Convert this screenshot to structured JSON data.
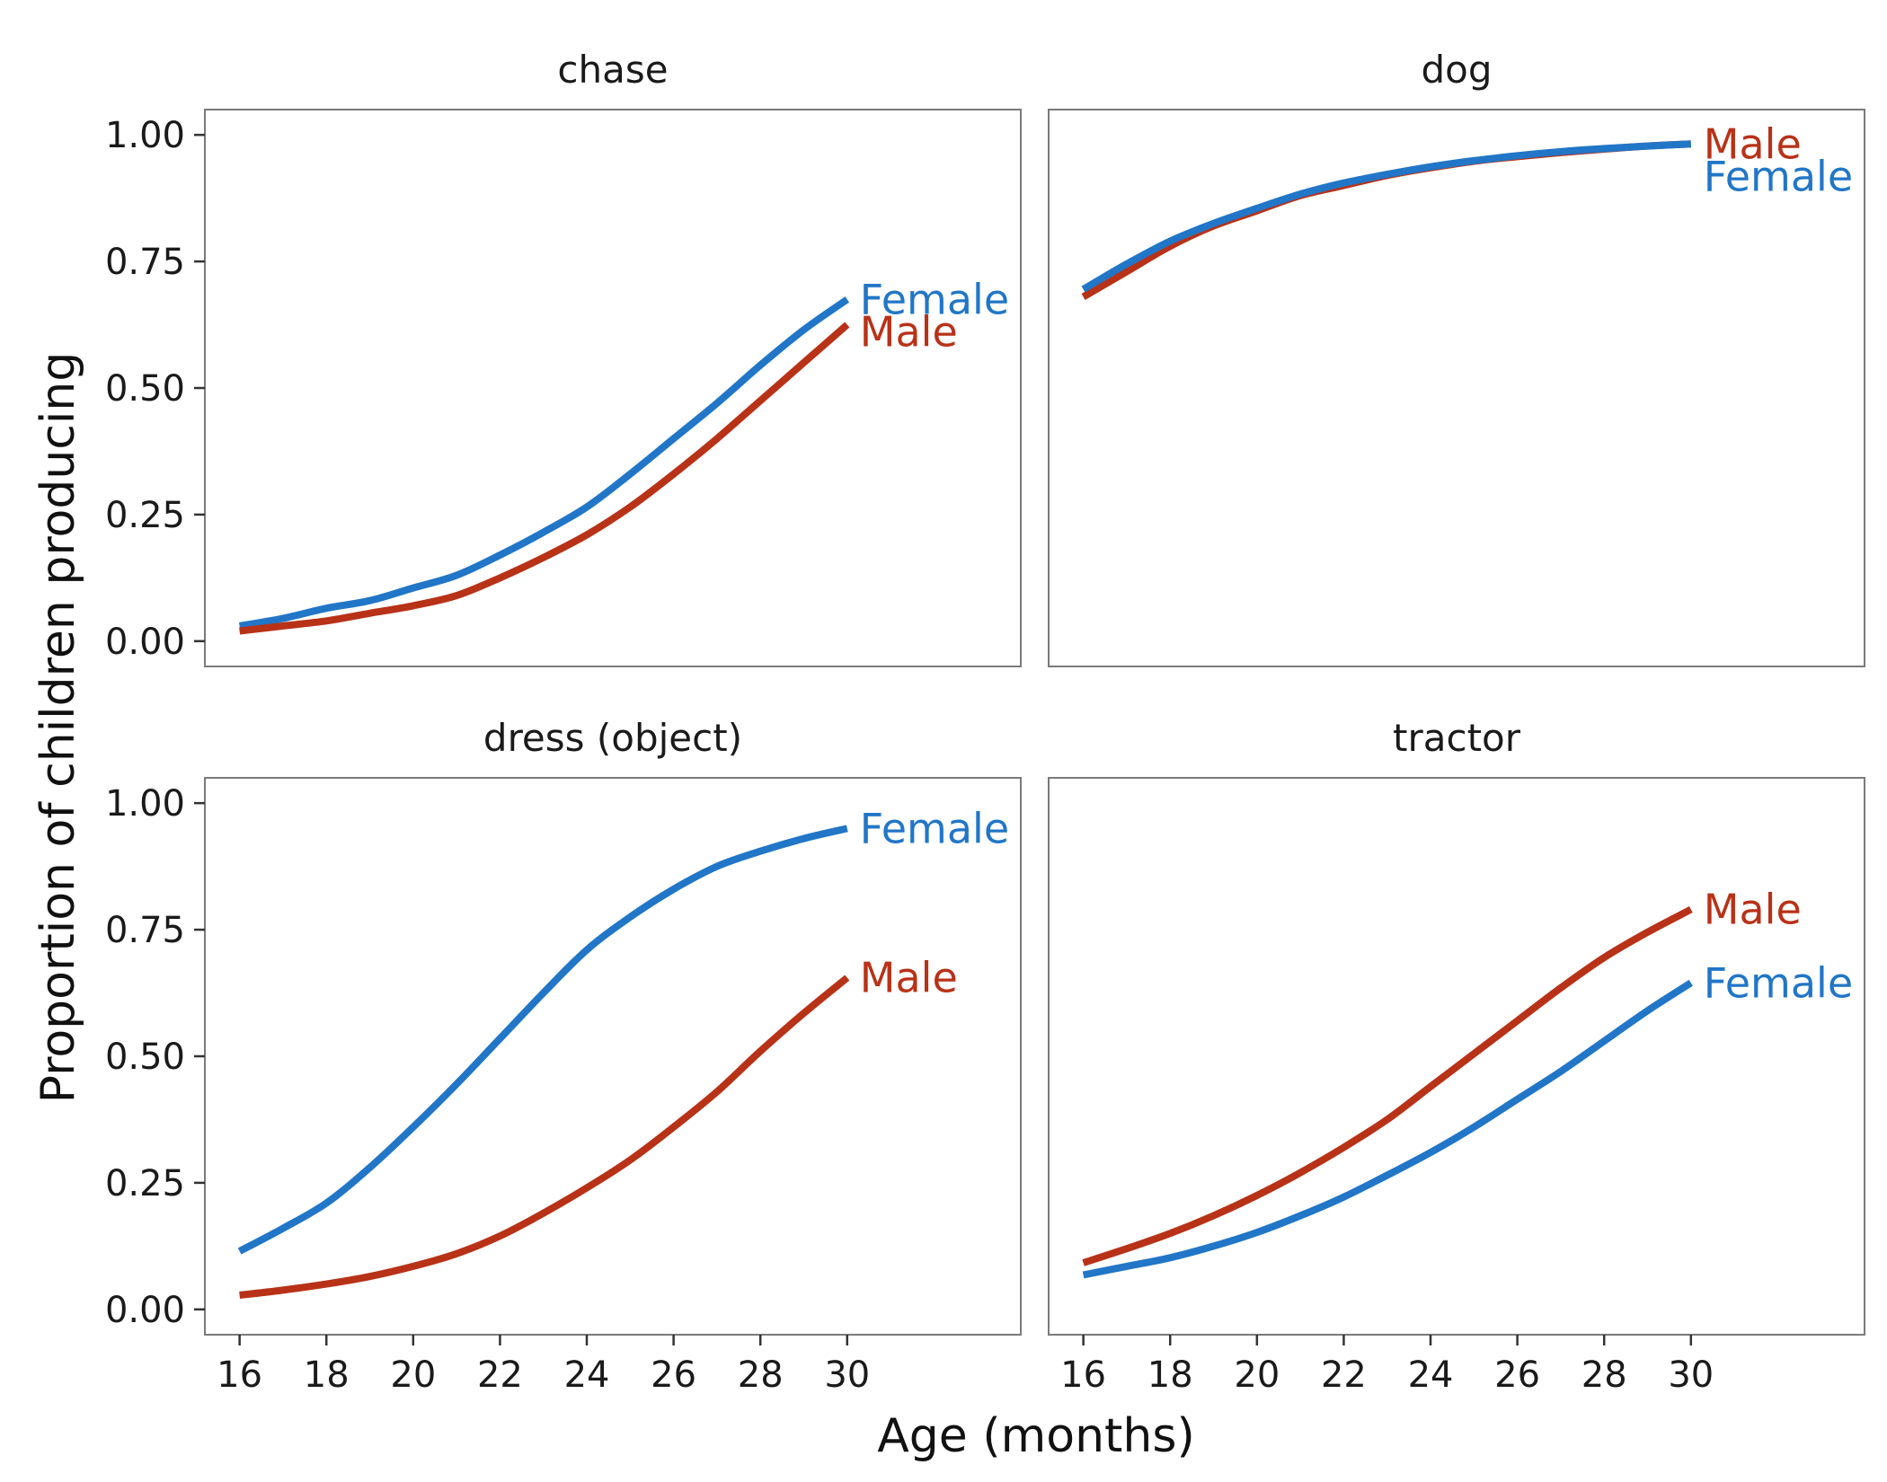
{
  "chart_data": {
    "type": "line",
    "xlabel": "Age (months)",
    "ylabel": "Proportion of children producing",
    "xlim": [
      15.2,
      34
    ],
    "ylim": [
      -0.05,
      1.05
    ],
    "x_ticks": [
      16,
      18,
      20,
      22,
      24,
      26,
      28,
      30
    ],
    "y_ticks": [
      0.0,
      0.25,
      0.5,
      0.75,
      1.0
    ],
    "y_tick_labels": [
      "0.00",
      "0.25",
      "0.50",
      "0.75",
      "1.00"
    ],
    "x_tick_labels": [
      "16",
      "18",
      "20",
      "22",
      "24",
      "26",
      "28",
      "30"
    ],
    "grid": false,
    "colors": {
      "Female": "#2176c7",
      "Male": "#b83217"
    },
    "x": [
      16,
      17,
      18,
      19,
      20,
      21,
      22,
      23,
      24,
      25,
      26,
      27,
      28,
      29,
      30
    ],
    "panels": [
      {
        "title": "chase",
        "series": [
          {
            "name": "Female",
            "label": "Female",
            "values": [
              0.03,
              0.045,
              0.065,
              0.08,
              0.105,
              0.13,
              0.17,
              0.215,
              0.265,
              0.33,
              0.4,
              0.47,
              0.545,
              0.615,
              0.675
            ]
          },
          {
            "name": "Male",
            "label": "Male",
            "values": [
              0.02,
              0.03,
              0.04,
              0.055,
              0.07,
              0.09,
              0.125,
              0.165,
              0.21,
              0.265,
              0.33,
              0.4,
              0.475,
              0.55,
              0.625
            ]
          }
        ]
      },
      {
        "title": "dog",
        "series": [
          {
            "name": "Male",
            "label": "Male",
            "values": [
              0.68,
              0.73,
              0.78,
              0.82,
              0.85,
              0.88,
              0.9,
              0.92,
              0.935,
              0.948,
              0.957,
              0.965,
              0.972,
              0.978,
              0.982
            ]
          },
          {
            "name": "Female",
            "label": "Female",
            "values": [
              0.695,
              0.745,
              0.79,
              0.825,
              0.855,
              0.883,
              0.905,
              0.922,
              0.937,
              0.949,
              0.959,
              0.967,
              0.973,
              0.978,
              0.982
            ]
          }
        ]
      },
      {
        "title": "dress (object)",
        "series": [
          {
            "name": "Female",
            "label": "Female",
            "values": [
              0.115,
              0.16,
              0.21,
              0.28,
              0.36,
              0.445,
              0.535,
              0.625,
              0.71,
              0.775,
              0.83,
              0.875,
              0.905,
              0.93,
              0.95
            ]
          },
          {
            "name": "Male",
            "label": "Male",
            "values": [
              0.028,
              0.038,
              0.05,
              0.065,
              0.085,
              0.11,
              0.145,
              0.19,
              0.24,
              0.295,
              0.36,
              0.43,
              0.51,
              0.585,
              0.655
            ]
          }
        ]
      },
      {
        "title": "tractor",
        "series": [
          {
            "name": "Male",
            "label": "Male",
            "values": [
              0.092,
              0.12,
              0.15,
              0.185,
              0.225,
              0.27,
              0.32,
              0.375,
              0.44,
              0.505,
              0.57,
              0.635,
              0.695,
              0.745,
              0.79
            ]
          },
          {
            "name": "Female",
            "label": "Female",
            "values": [
              0.068,
              0.085,
              0.102,
              0.125,
              0.152,
              0.185,
              0.222,
              0.265,
              0.31,
              0.36,
              0.415,
              0.47,
              0.53,
              0.59,
              0.645
            ]
          }
        ]
      }
    ]
  }
}
